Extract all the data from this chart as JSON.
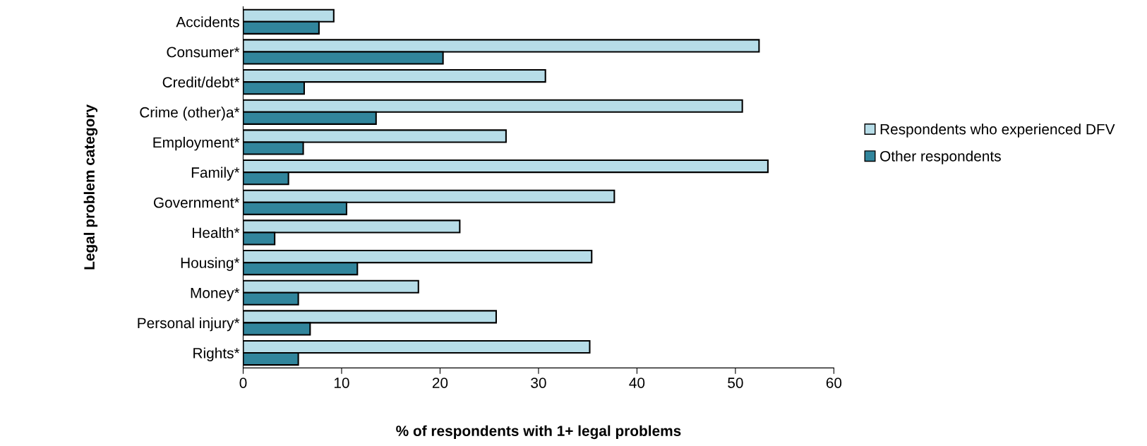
{
  "chart_data": {
    "type": "bar",
    "orientation": "horizontal",
    "xlabel": "% of respondents with 1+ legal problems",
    "ylabel": "Legal problem category",
    "categories": [
      "Accidents",
      "Consumer*",
      "Credit/debt*",
      "Crime (other)a*",
      "Employment*",
      "Family*",
      "Government*",
      "Health*",
      "Housing*",
      "Money*",
      "Personal injury*",
      "Rights*"
    ],
    "series": [
      {
        "name": "Respondents who experienced DFV",
        "color": "#b7dde8",
        "values": [
          9.2,
          52.4,
          30.7,
          50.7,
          26.7,
          53.3,
          37.7,
          22.0,
          35.4,
          17.8,
          25.7,
          35.2
        ]
      },
      {
        "name": "Other respondents",
        "color": "#31859c",
        "values": [
          7.7,
          20.3,
          6.2,
          13.5,
          6.1,
          4.6,
          10.5,
          3.2,
          11.6,
          5.6,
          6.8,
          5.6
        ]
      }
    ],
    "xlim": [
      0,
      60
    ],
    "xticks": [
      0,
      10,
      20,
      30,
      40,
      50,
      60
    ],
    "grid": false,
    "legend": "right"
  }
}
